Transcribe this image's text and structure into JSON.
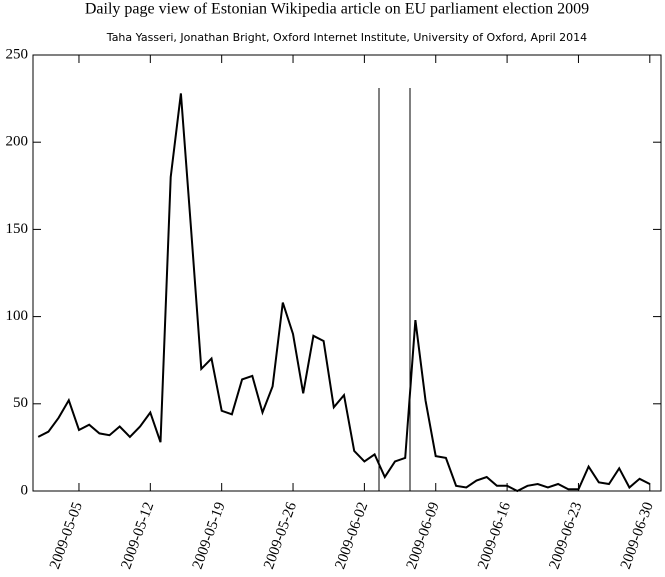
{
  "chart_data": {
    "type": "line",
    "title": "Daily page view of Estonian Wikipedia article on EU parliament election 2009",
    "subtitle": "Taha Yasseri, Jonathan Bright, Oxford Internet Institute, University of Oxford, April 2014",
    "x": [
      "2009-05-01",
      "2009-05-02",
      "2009-05-03",
      "2009-05-04",
      "2009-05-05",
      "2009-05-06",
      "2009-05-07",
      "2009-05-08",
      "2009-05-09",
      "2009-05-10",
      "2009-05-11",
      "2009-05-12",
      "2009-05-13",
      "2009-05-14",
      "2009-05-15",
      "2009-05-16",
      "2009-05-17",
      "2009-05-18",
      "2009-05-19",
      "2009-05-20",
      "2009-05-21",
      "2009-05-22",
      "2009-05-23",
      "2009-05-24",
      "2009-05-25",
      "2009-05-26",
      "2009-05-27",
      "2009-05-28",
      "2009-05-29",
      "2009-05-30",
      "2009-05-31",
      "2009-06-01",
      "2009-06-02",
      "2009-06-03",
      "2009-06-04",
      "2009-06-05",
      "2009-06-06",
      "2009-06-07",
      "2009-06-08",
      "2009-06-09",
      "2009-06-10",
      "2009-06-11",
      "2009-06-12",
      "2009-06-13",
      "2009-06-14",
      "2009-06-15",
      "2009-06-16",
      "2009-06-17",
      "2009-06-18",
      "2009-06-19",
      "2009-06-20",
      "2009-06-21",
      "2009-06-22",
      "2009-06-23",
      "2009-06-24",
      "2009-06-25",
      "2009-06-26",
      "2009-06-27",
      "2009-06-28",
      "2009-06-29",
      "2009-06-30"
    ],
    "values": [
      31,
      34,
      42,
      52,
      35,
      38,
      33,
      32,
      37,
      31,
      37,
      45,
      28,
      180,
      228,
      150,
      70,
      76,
      46,
      44,
      64,
      66,
      45,
      60,
      108,
      90,
      56,
      89,
      86,
      48,
      55,
      23,
      17,
      21,
      8,
      17,
      19,
      98,
      52,
      20,
      19,
      3,
      2,
      6,
      8,
      3,
      3,
      0,
      3,
      4,
      2,
      4,
      1,
      1,
      14,
      5,
      4,
      13,
      2,
      7,
      4
    ],
    "color": "#000000",
    "xlim": [
      "2009-04-30",
      "2009-07-01"
    ],
    "xticks": [
      "2009-05-05",
      "2009-05-12",
      "2009-05-19",
      "2009-05-26",
      "2009-06-02",
      "2009-06-09",
      "2009-06-16",
      "2009-06-23",
      "2009-06-30"
    ],
    "ylim": [
      0,
      250
    ],
    "yticks": [
      0,
      50,
      100,
      150,
      200,
      250
    ]
  }
}
